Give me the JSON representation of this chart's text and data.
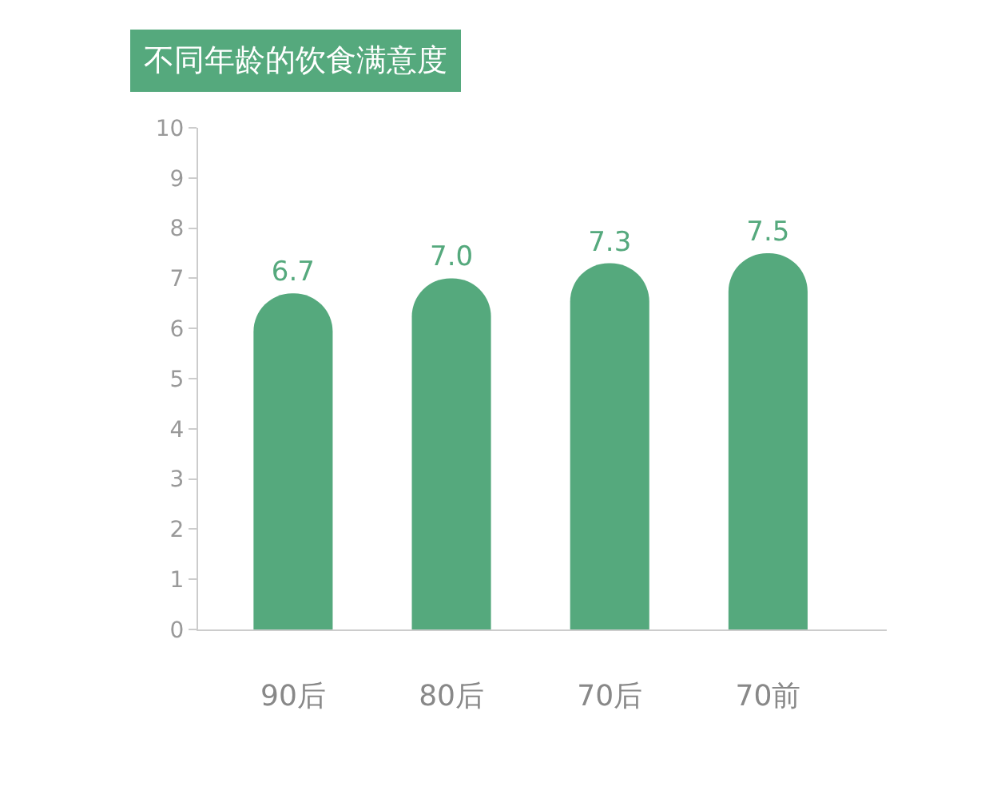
{
  "chart_data": {
    "type": "bar",
    "title": "不同年龄的饮食满意度",
    "categories": [
      "90后",
      "80后",
      "70后",
      "70前"
    ],
    "values": [
      6.7,
      7.0,
      7.3,
      7.5
    ],
    "value_labels": [
      "6.7",
      "7.0",
      "7.3",
      "7.5"
    ],
    "color": "#55a97d",
    "ylim": [
      0,
      10
    ],
    "yticks": [
      0,
      1,
      2,
      3,
      4,
      5,
      6,
      7,
      8,
      9,
      10
    ],
    "legend": false
  }
}
